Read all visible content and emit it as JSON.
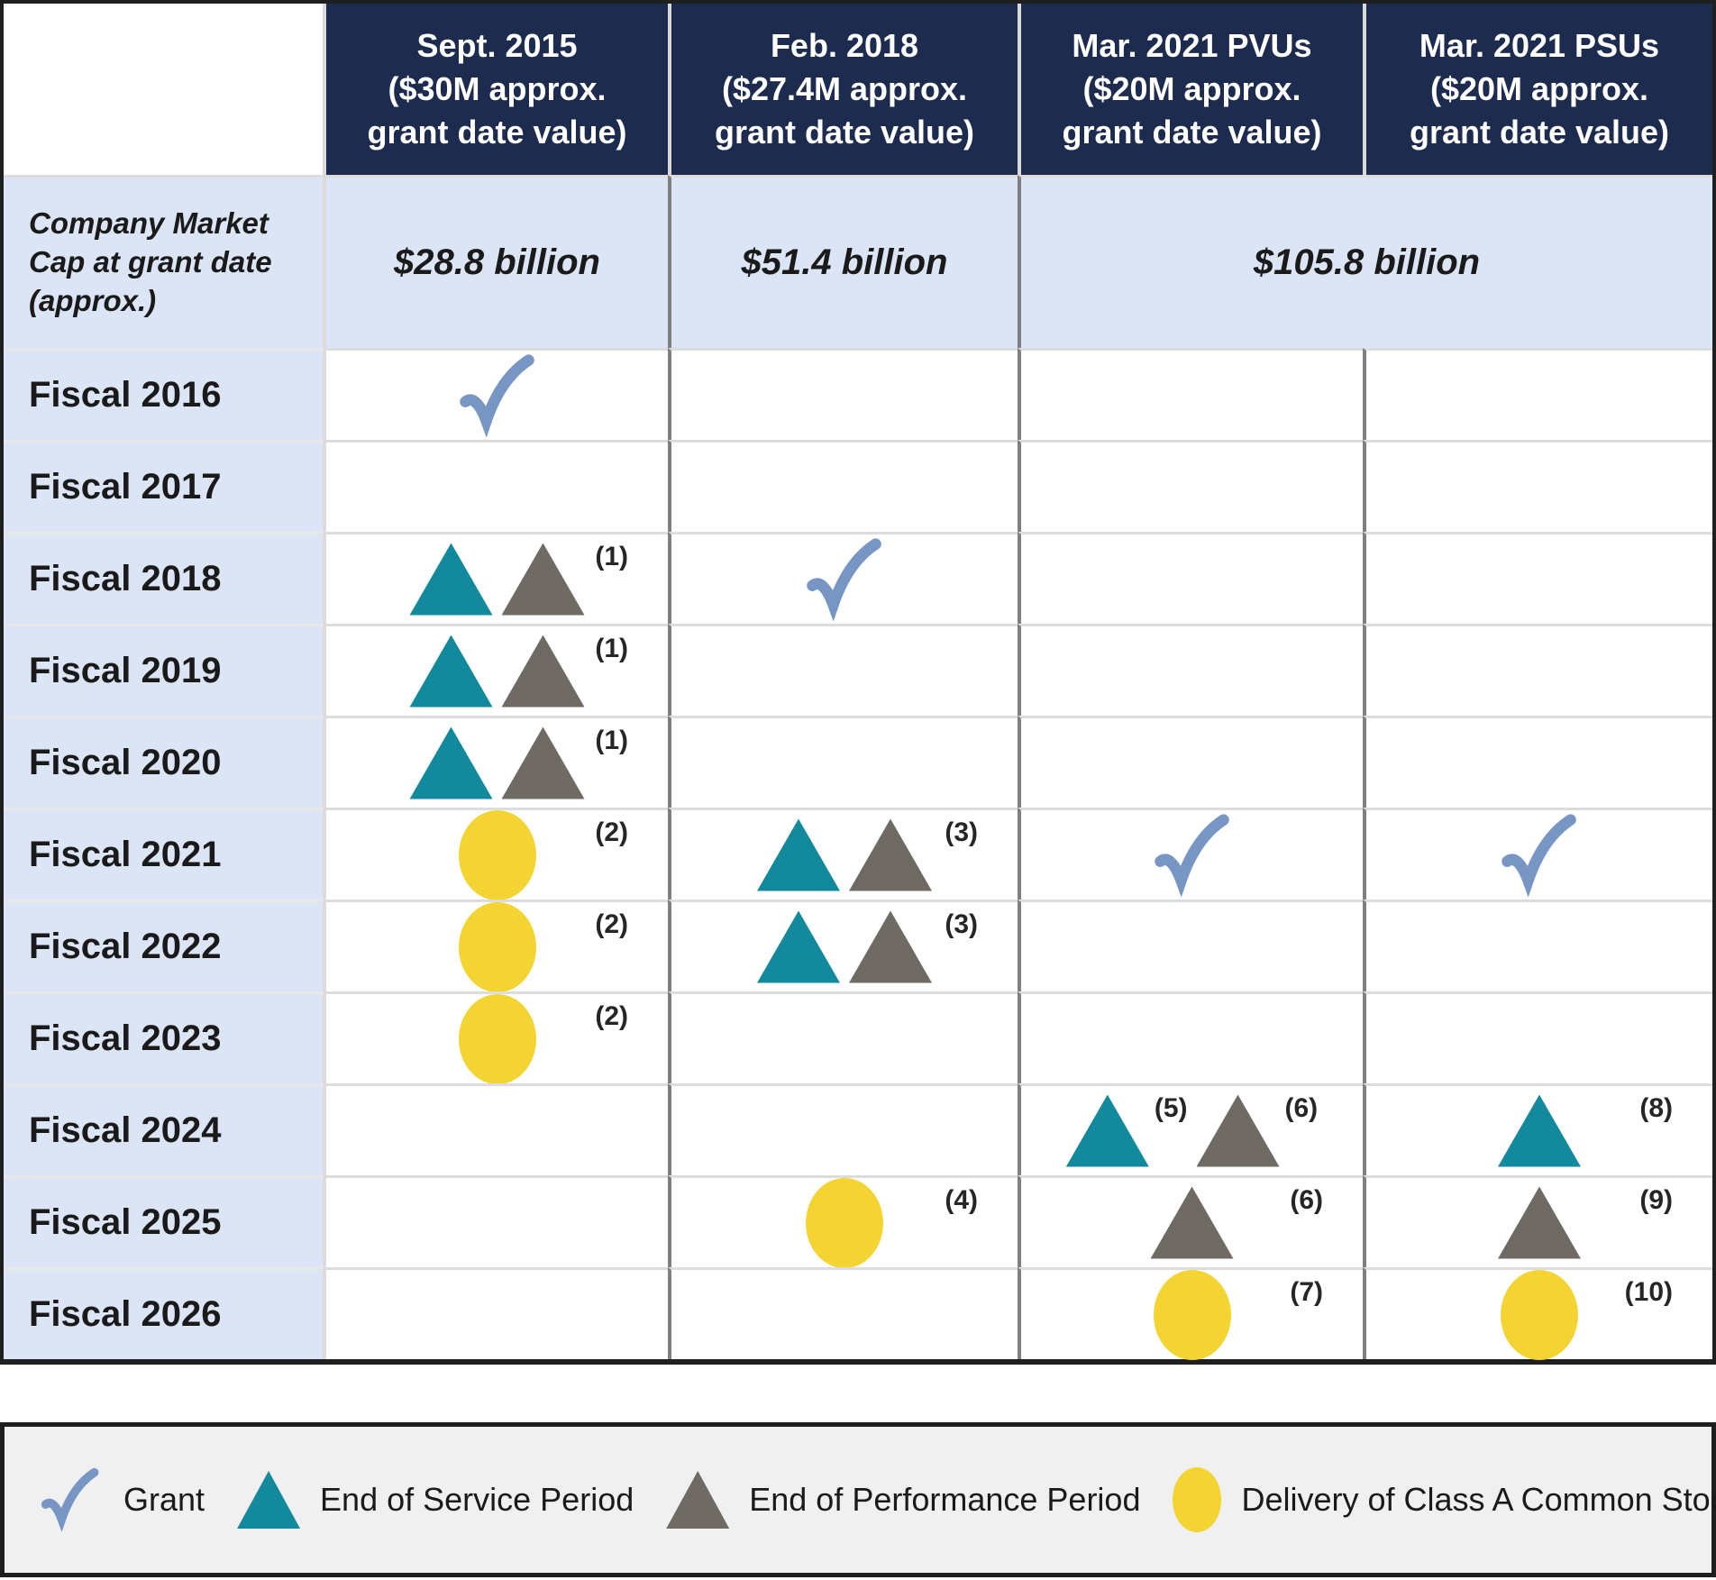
{
  "table": {
    "header": {
      "columns": [
        "Sept. 2015\n($30M approx.\ngrant date value)",
        "Feb. 2018\n($27.4M approx.\ngrant date value)",
        "Mar. 2021 PVUs\n($20M approx.\ngrant date value)",
        "Mar. 2021 PSUs\n($20M approx.\ngrant date value)"
      ]
    },
    "market_cap_row": {
      "label": "Company Market\nCap at grant date\n(approx.)",
      "values": [
        "$28.8 billion",
        "$51.4 billion",
        "$105.8 billion"
      ]
    },
    "rows": [
      {
        "label": "Fiscal 2016",
        "cells": [
          {
            "items": [
              {
                "type": "check"
              }
            ]
          },
          {},
          {},
          {}
        ]
      },
      {
        "label": "Fiscal 2017",
        "cells": [
          {},
          {},
          {},
          {}
        ]
      },
      {
        "label": "Fiscal 2018",
        "cells": [
          {
            "items": [
              {
                "type": "tri-teal"
              },
              {
                "type": "tri-gray"
              }
            ],
            "footnote": "(1)"
          },
          {
            "items": [
              {
                "type": "check"
              }
            ]
          },
          {},
          {}
        ]
      },
      {
        "label": "Fiscal 2019",
        "cells": [
          {
            "items": [
              {
                "type": "tri-teal"
              },
              {
                "type": "tri-gray"
              }
            ],
            "footnote": "(1)"
          },
          {},
          {},
          {}
        ]
      },
      {
        "label": "Fiscal 2020",
        "cells": [
          {
            "items": [
              {
                "type": "tri-teal"
              },
              {
                "type": "tri-gray"
              }
            ],
            "footnote": "(1)"
          },
          {},
          {},
          {}
        ]
      },
      {
        "label": "Fiscal 2021",
        "cells": [
          {
            "items": [
              {
                "type": "circle"
              }
            ],
            "footnote": "(2)"
          },
          {
            "items": [
              {
                "type": "tri-teal"
              },
              {
                "type": "tri-gray"
              }
            ],
            "footnote": "(3)"
          },
          {
            "items": [
              {
                "type": "check"
              }
            ]
          },
          {
            "items": [
              {
                "type": "check"
              }
            ]
          }
        ]
      },
      {
        "label": "Fiscal 2022",
        "cells": [
          {
            "items": [
              {
                "type": "circle"
              }
            ],
            "footnote": "(2)"
          },
          {
            "items": [
              {
                "type": "tri-teal"
              },
              {
                "type": "tri-gray"
              }
            ],
            "footnote": "(3)"
          },
          {},
          {}
        ]
      },
      {
        "label": "Fiscal 2023",
        "cells": [
          {
            "items": [
              {
                "type": "circle"
              }
            ],
            "footnote": "(2)"
          },
          {},
          {},
          {}
        ]
      },
      {
        "label": "Fiscal 2024",
        "cells": [
          {},
          {},
          {
            "items": [
              {
                "type": "tri-teal",
                "footnote": "(5)"
              },
              {
                "type": "tri-gray",
                "footnote": "(6)"
              }
            ]
          },
          {
            "items": [
              {
                "type": "tri-teal"
              }
            ],
            "footnote": "(8)"
          }
        ]
      },
      {
        "label": "Fiscal 2025",
        "cells": [
          {},
          {
            "items": [
              {
                "type": "circle"
              }
            ],
            "footnote": "(4)"
          },
          {
            "items": [
              {
                "type": "tri-gray"
              }
            ],
            "footnote": "(6)"
          },
          {
            "items": [
              {
                "type": "tri-gray"
              }
            ],
            "footnote": "(9)"
          }
        ]
      },
      {
        "label": "Fiscal 2026",
        "cells": [
          {},
          {},
          {
            "items": [
              {
                "type": "circle"
              }
            ],
            "footnote": "(7)"
          },
          {
            "items": [
              {
                "type": "circle"
              }
            ],
            "footnote": "(10)"
          }
        ]
      }
    ]
  },
  "legend": {
    "items": [
      {
        "icon": "check",
        "label": "Grant"
      },
      {
        "icon": "tri-teal",
        "label": "End of Service Period"
      },
      {
        "icon": "tri-gray",
        "label": "End of Performance Period"
      },
      {
        "icon": "circle",
        "label": "Delivery of Class A Common Stock"
      }
    ]
  },
  "colors": {
    "header_navy": "#1D2B4E",
    "row_label_blue": "#DBE5F6",
    "teal_triangle": "#12899C",
    "gray_triangle": "#6F6B64",
    "yellow_circle": "#F3D433",
    "check_blue": "#7796C4",
    "grid_light": "#DCDCDC",
    "grid_dark": "#7F7F7F",
    "legend_bg": "#F0F0F1"
  }
}
